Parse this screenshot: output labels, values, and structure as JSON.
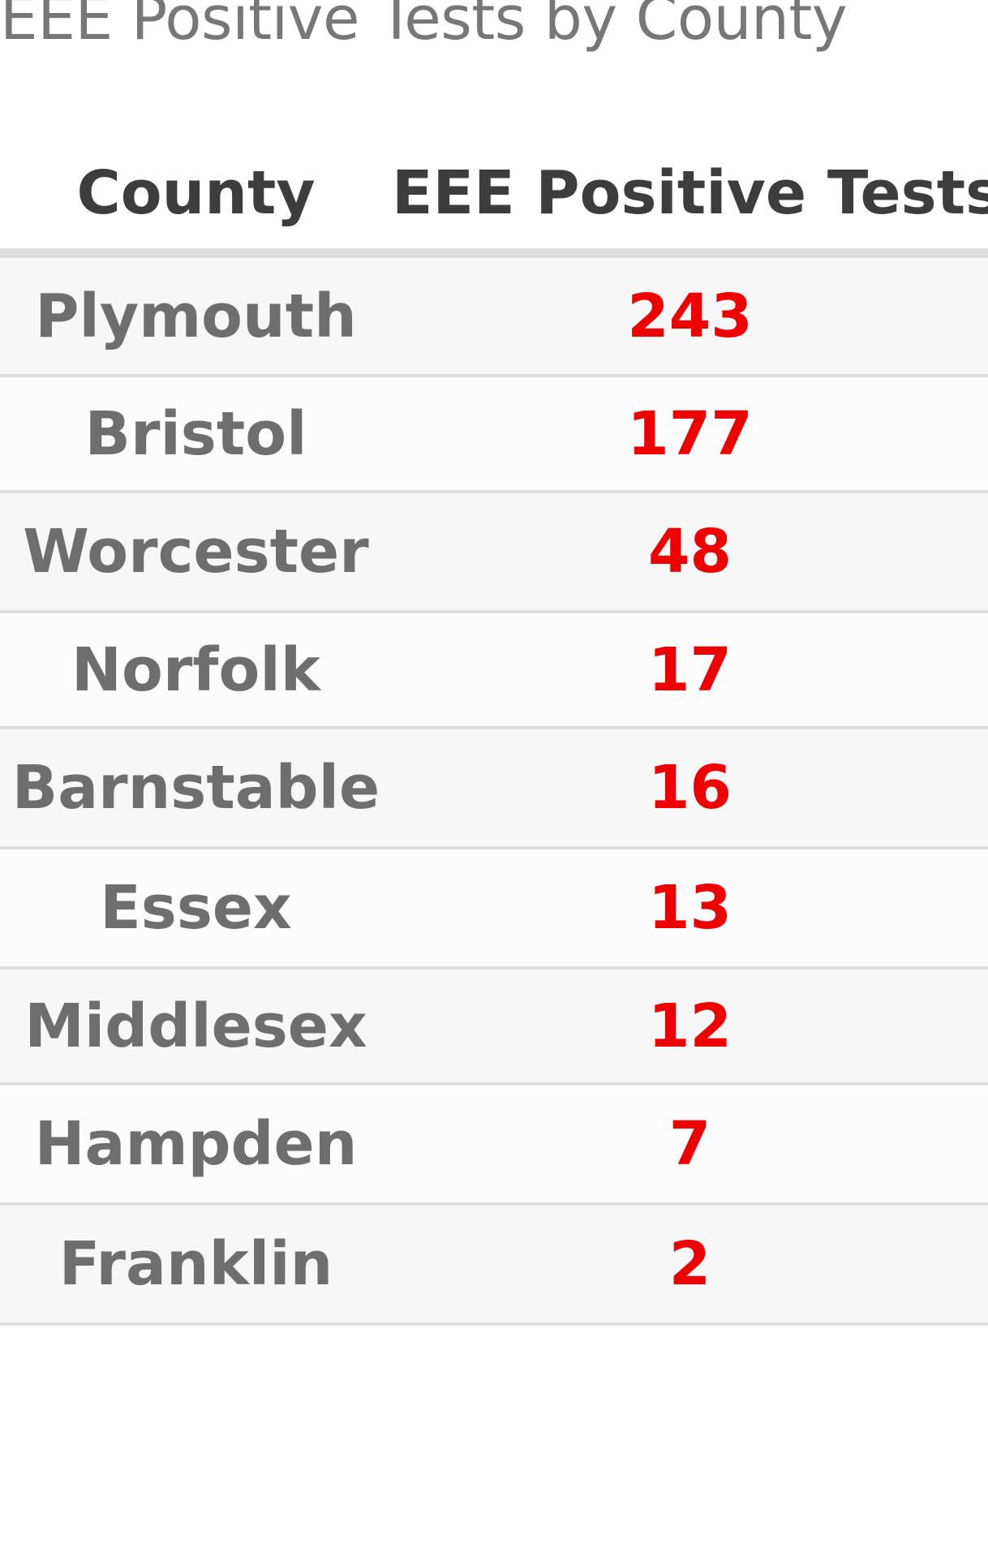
{
  "title": "EEE Positive Tests by County",
  "headers": [
    "County",
    "EEE Positive Tests"
  ],
  "rows": [
    {
      "county": "Plymouth",
      "tests": "243"
    },
    {
      "county": "Bristol",
      "tests": "177"
    },
    {
      "county": "Worcester",
      "tests": "48"
    },
    {
      "county": "Norfolk",
      "tests": "17"
    },
    {
      "county": "Barnstable",
      "tests": "16"
    },
    {
      "county": "Essex",
      "tests": "13"
    },
    {
      "county": "Middlesex",
      "tests": "12"
    },
    {
      "county": "Hampden",
      "tests": "7"
    },
    {
      "county": "Franklin",
      "tests": "2"
    }
  ],
  "colors": {
    "value": "#ee0000",
    "county": "#6e6e6e",
    "header": "#3d3d3d",
    "title": "#777777",
    "divider": "#dddddd"
  },
  "chart_data": {
    "type": "table",
    "title": "EEE Positive Tests by County",
    "columns": [
      "County",
      "EEE Positive Tests"
    ],
    "categories": [
      "Plymouth",
      "Bristol",
      "Worcester",
      "Norfolk",
      "Barnstable",
      "Essex",
      "Middlesex",
      "Hampden",
      "Franklin"
    ],
    "values": [
      243,
      177,
      48,
      17,
      16,
      13,
      12,
      7,
      2
    ]
  }
}
